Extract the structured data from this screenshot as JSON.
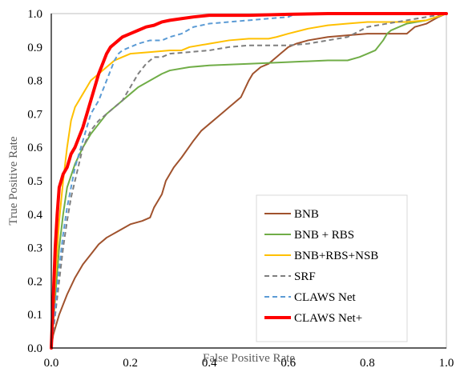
{
  "chart_data": {
    "type": "line",
    "title": "",
    "xlabel": "False Positive Rate",
    "ylabel": "True Positive Rate",
    "xlim": [
      0,
      1
    ],
    "ylim": [
      0,
      1
    ],
    "x_ticks": [
      "0.0",
      "0.2",
      "0.4",
      "0.6",
      "0.8",
      "1.0"
    ],
    "y_ticks": [
      "0.0",
      "0.1",
      "0.2",
      "0.3",
      "0.4",
      "0.5",
      "0.6",
      "0.7",
      "0.8",
      "0.9",
      "1.0"
    ],
    "grid": false,
    "legend_position": "bottom-right",
    "series": [
      {
        "name": "BNB",
        "color": "#a0522d",
        "style": "solid",
        "width": 2,
        "x": [
          0,
          0.005,
          0.02,
          0.04,
          0.06,
          0.08,
          0.1,
          0.12,
          0.14,
          0.17,
          0.2,
          0.23,
          0.25,
          0.26,
          0.27,
          0.28,
          0.29,
          0.3,
          0.31,
          0.33,
          0.36,
          0.38,
          0.4,
          0.42,
          0.44,
          0.45,
          0.46,
          0.48,
          0.5,
          0.51,
          0.53,
          0.55,
          0.57,
          0.58,
          0.59,
          0.6,
          0.62,
          0.65,
          0.7,
          0.75,
          0.8,
          0.85,
          0.9,
          0.91,
          0.92,
          0.95,
          0.98,
          1.0
        ],
        "y": [
          0,
          0.04,
          0.1,
          0.16,
          0.21,
          0.25,
          0.28,
          0.31,
          0.33,
          0.35,
          0.37,
          0.38,
          0.39,
          0.42,
          0.44,
          0.46,
          0.5,
          0.52,
          0.54,
          0.57,
          0.62,
          0.65,
          0.67,
          0.69,
          0.71,
          0.72,
          0.73,
          0.75,
          0.8,
          0.82,
          0.84,
          0.85,
          0.87,
          0.88,
          0.89,
          0.9,
          0.91,
          0.92,
          0.93,
          0.935,
          0.94,
          0.94,
          0.94,
          0.95,
          0.96,
          0.97,
          0.99,
          1.0
        ]
      },
      {
        "name": "BNB + RBS",
        "color": "#70ad47",
        "style": "solid",
        "width": 2,
        "x": [
          0,
          0.01,
          0.02,
          0.03,
          0.04,
          0.06,
          0.08,
          0.1,
          0.12,
          0.14,
          0.16,
          0.18,
          0.2,
          0.22,
          0.25,
          0.28,
          0.3,
          0.35,
          0.4,
          0.5,
          0.6,
          0.7,
          0.75,
          0.78,
          0.8,
          0.82,
          0.84,
          0.85,
          0.86,
          0.88,
          0.9,
          0.95,
          1.0
        ],
        "y": [
          0,
          0.15,
          0.3,
          0.4,
          0.48,
          0.55,
          0.6,
          0.64,
          0.67,
          0.7,
          0.72,
          0.74,
          0.76,
          0.78,
          0.8,
          0.82,
          0.83,
          0.84,
          0.845,
          0.85,
          0.855,
          0.86,
          0.86,
          0.87,
          0.88,
          0.89,
          0.92,
          0.94,
          0.95,
          0.96,
          0.97,
          0.98,
          1.0
        ]
      },
      {
        "name": "BNB+RBS+NSB",
        "color": "#ffc000",
        "style": "solid",
        "width": 2,
        "x": [
          0,
          0.01,
          0.02,
          0.03,
          0.04,
          0.05,
          0.06,
          0.07,
          0.08,
          0.09,
          0.1,
          0.12,
          0.14,
          0.16,
          0.18,
          0.2,
          0.25,
          0.3,
          0.33,
          0.35,
          0.4,
          0.45,
          0.5,
          0.55,
          0.57,
          0.6,
          0.65,
          0.7,
          0.75,
          0.8,
          0.9,
          0.95,
          1.0
        ],
        "y": [
          0,
          0.2,
          0.38,
          0.5,
          0.6,
          0.68,
          0.72,
          0.74,
          0.76,
          0.78,
          0.8,
          0.82,
          0.84,
          0.86,
          0.87,
          0.88,
          0.885,
          0.89,
          0.89,
          0.9,
          0.91,
          0.92,
          0.925,
          0.925,
          0.93,
          0.94,
          0.955,
          0.965,
          0.97,
          0.975,
          0.975,
          0.98,
          1.0
        ]
      },
      {
        "name": "SRF",
        "color": "#7f7f7f",
        "style": "dashed",
        "width": 2,
        "x": [
          0,
          0.01,
          0.02,
          0.03,
          0.04,
          0.05,
          0.06,
          0.07,
          0.08,
          0.1,
          0.12,
          0.14,
          0.16,
          0.18,
          0.2,
          0.22,
          0.24,
          0.26,
          0.28,
          0.3,
          0.35,
          0.4,
          0.45,
          0.5,
          0.55,
          0.6,
          0.65,
          0.7,
          0.75,
          0.8,
          0.85,
          0.9,
          0.95,
          1.0
        ],
        "y": [
          0,
          0.1,
          0.2,
          0.3,
          0.38,
          0.45,
          0.5,
          0.55,
          0.6,
          0.65,
          0.68,
          0.7,
          0.72,
          0.74,
          0.78,
          0.82,
          0.85,
          0.87,
          0.87,
          0.88,
          0.885,
          0.89,
          0.9,
          0.905,
          0.905,
          0.905,
          0.91,
          0.92,
          0.93,
          0.96,
          0.97,
          0.98,
          0.99,
          1.0
        ]
      },
      {
        "name": "CLAWS Net",
        "color": "#5b9bd5",
        "style": "dashed",
        "width": 2,
        "x": [
          0,
          0.01,
          0.02,
          0.03,
          0.04,
          0.05,
          0.06,
          0.07,
          0.08,
          0.09,
          0.1,
          0.11,
          0.12,
          0.13,
          0.14,
          0.15,
          0.16,
          0.17,
          0.18,
          0.2,
          0.22,
          0.25,
          0.28,
          0.3,
          0.33,
          0.36,
          0.4,
          0.45,
          0.5,
          0.55,
          0.6,
          0.62,
          0.7,
          0.8,
          0.9,
          1.0
        ],
        "y": [
          0,
          0.12,
          0.24,
          0.34,
          0.42,
          0.48,
          0.54,
          0.58,
          0.62,
          0.66,
          0.7,
          0.72,
          0.74,
          0.77,
          0.8,
          0.83,
          0.86,
          0.88,
          0.89,
          0.9,
          0.91,
          0.92,
          0.92,
          0.93,
          0.94,
          0.96,
          0.97,
          0.975,
          0.98,
          0.985,
          0.99,
          1.0,
          1.0,
          1.0,
          1.0,
          1.0
        ]
      },
      {
        "name": "CLAWS Net+",
        "color": "#ff0000",
        "style": "solid",
        "width": 4,
        "x": [
          0,
          0.005,
          0.01,
          0.015,
          0.02,
          0.03,
          0.04,
          0.05,
          0.06,
          0.07,
          0.08,
          0.09,
          0.1,
          0.11,
          0.12,
          0.13,
          0.14,
          0.15,
          0.16,
          0.17,
          0.18,
          0.2,
          0.22,
          0.24,
          0.26,
          0.28,
          0.3,
          0.33,
          0.36,
          0.4,
          0.45,
          0.5,
          0.6,
          0.7,
          0.8,
          0.9,
          1.0
        ],
        "y": [
          0,
          0.15,
          0.3,
          0.4,
          0.48,
          0.52,
          0.54,
          0.58,
          0.6,
          0.63,
          0.66,
          0.7,
          0.74,
          0.78,
          0.82,
          0.85,
          0.88,
          0.9,
          0.91,
          0.92,
          0.93,
          0.94,
          0.95,
          0.96,
          0.965,
          0.975,
          0.98,
          0.985,
          0.99,
          0.995,
          0.995,
          0.995,
          0.998,
          1.0,
          1.0,
          1.0,
          1.0
        ]
      }
    ]
  }
}
